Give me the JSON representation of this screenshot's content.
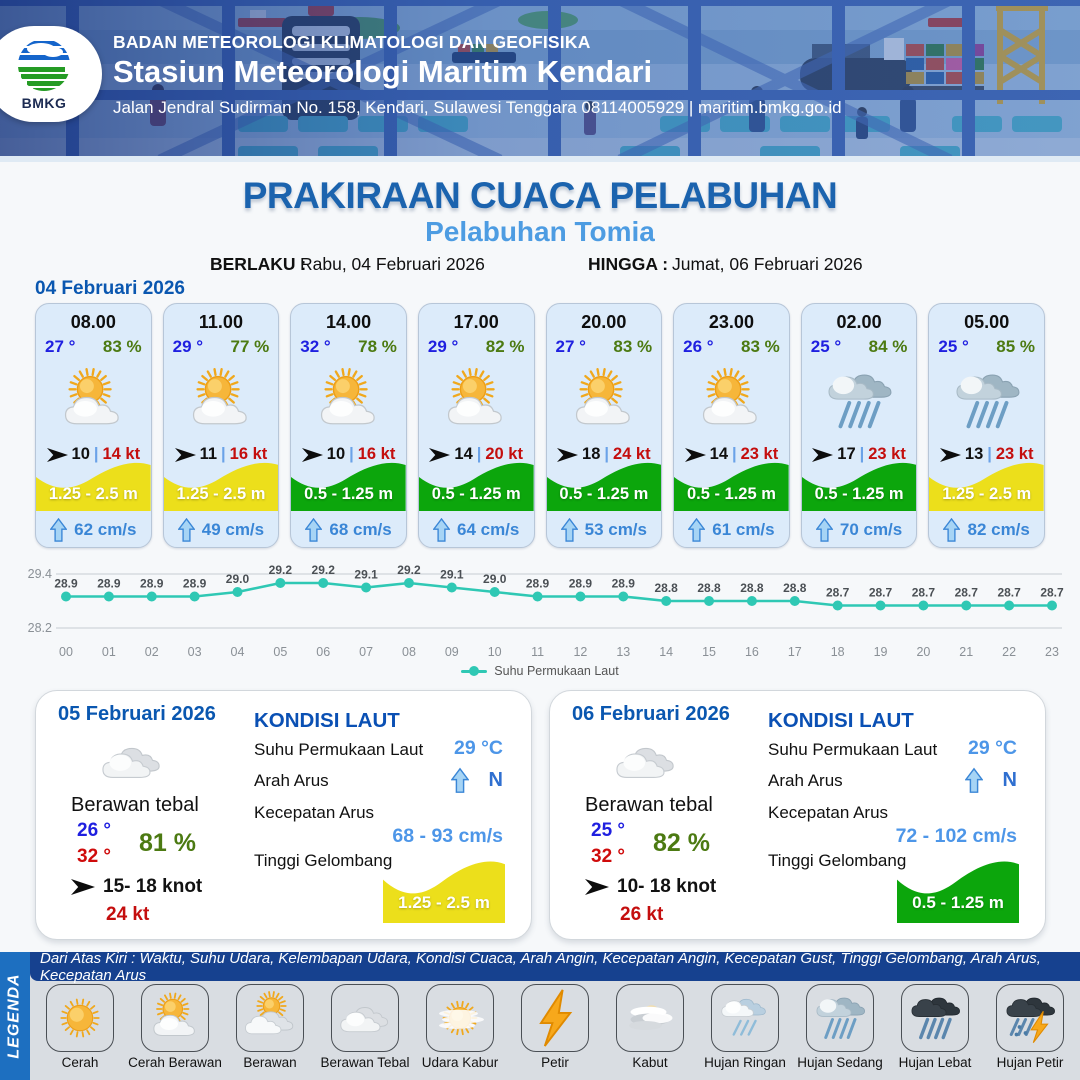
{
  "header": {
    "org": "BADAN METEOROLOGI KLIMATOLOGI DAN GEOFISIKA",
    "station": "Stasiun Meteorologi Maritim Kendari",
    "address": "Jalan Jendral Sudirman No. 158, Kendari, Sulawesi Tenggara  08114005929 | maritim.bmkg.go.id",
    "logo_text": "BMKG"
  },
  "title": {
    "main": "PRAKIRAAN CUACA PELABUHAN",
    "port": "Pelabuhan Tomia",
    "valid_from_label": "BERLAKU :",
    "valid_from": "Rabu, 04 Februari 2026",
    "valid_to_label": "HINGGA :",
    "valid_to": "Jumat, 06 Februari 2026"
  },
  "forecast_date": "04 Februari 2026",
  "hourly": [
    {
      "time": "08.00",
      "temp": "27 °",
      "humidity": "83 %",
      "icon": "cerah-berawan",
      "wind_speed": "10",
      "gust": "14 kt",
      "wave": "1.25 - 2.5 m",
      "wave_color": "#ecdf1b",
      "current": "62 cm/s"
    },
    {
      "time": "11.00",
      "temp": "29 °",
      "humidity": "77 %",
      "icon": "cerah-berawan",
      "wind_speed": "11",
      "gust": "16 kt",
      "wave": "1.25 - 2.5 m",
      "wave_color": "#ecdf1b",
      "current": "49 cm/s"
    },
    {
      "time": "14.00",
      "temp": "32 °",
      "humidity": "78 %",
      "icon": "cerah-berawan",
      "wind_speed": "10",
      "gust": "16 kt",
      "wave": "0.5 - 1.25 m",
      "wave_color": "#0ca60c",
      "current": "68 cm/s"
    },
    {
      "time": "17.00",
      "temp": "29 °",
      "humidity": "82 %",
      "icon": "cerah-berawan",
      "wind_speed": "14",
      "gust": "20 kt",
      "wave": "0.5 - 1.25 m",
      "wave_color": "#0ca60c",
      "current": "64 cm/s"
    },
    {
      "time": "20.00",
      "temp": "27 °",
      "humidity": "83 %",
      "icon": "cerah-berawan",
      "wind_speed": "18",
      "gust": "24 kt",
      "wave": "0.5 - 1.25 m",
      "wave_color": "#0ca60c",
      "current": "53 cm/s"
    },
    {
      "time": "23.00",
      "temp": "26 °",
      "humidity": "83 %",
      "icon": "cerah-berawan",
      "wind_speed": "14",
      "gust": "23 kt",
      "wave": "0.5 - 1.25 m",
      "wave_color": "#0ca60c",
      "current": "61 cm/s"
    },
    {
      "time": "02.00",
      "temp": "25 °",
      "humidity": "84 %",
      "icon": "hujan-sedang",
      "wind_speed": "17",
      "gust": "23 kt",
      "wave": "0.5 - 1.25 m",
      "wave_color": "#0ca60c",
      "current": "70 cm/s"
    },
    {
      "time": "05.00",
      "temp": "25 °",
      "humidity": "85 %",
      "icon": "hujan-sedang",
      "wind_speed": "13",
      "gust": "23 kt",
      "wave": "1.25 - 2.5 m",
      "wave_color": "#ecdf1b",
      "current": "82 cm/s"
    }
  ],
  "chart_data": {
    "type": "line",
    "x": [
      "00",
      "01",
      "02",
      "03",
      "04",
      "05",
      "06",
      "07",
      "08",
      "09",
      "10",
      "11",
      "12",
      "13",
      "14",
      "15",
      "16",
      "17",
      "18",
      "19",
      "20",
      "21",
      "22",
      "23"
    ],
    "series": [
      {
        "name": "Suhu Permukaan Laut",
        "values": [
          28.9,
          28.9,
          28.9,
          28.9,
          29.0,
          29.2,
          29.2,
          29.1,
          29.2,
          29.1,
          29.0,
          28.9,
          28.9,
          28.9,
          28.8,
          28.8,
          28.8,
          28.8,
          28.7,
          28.7,
          28.7,
          28.7,
          28.7,
          28.7
        ]
      }
    ],
    "ylim": [
      28.2,
      29.4
    ],
    "yticks": [
      29.4,
      28.2
    ],
    "line_color": "#2fc8b4",
    "grid": true,
    "legend_position": "bottom"
  },
  "daily": [
    {
      "date": "05 Februari 2026",
      "icon": "berawan-tebal",
      "condition": "Berawan tebal",
      "temp_min": "26 °",
      "temp_max": "32 °",
      "humidity": "81 %",
      "wind": "15- 18 knot",
      "gust": "24 kt",
      "sea": {
        "heading": "KONDISI LAUT",
        "sst_label": "Suhu Permukaan Laut",
        "sst": "29 °C",
        "dir_label": "Arah Arus",
        "dir": "N",
        "speed_label": "Kecepatan Arus",
        "speed": "68 - 93 cm/s",
        "wave_label": "Tinggi Gelombang",
        "wave": "1.25 - 2.5 m",
        "wave_color": "#ecdf1b"
      }
    },
    {
      "date": "06 Februari 2026",
      "icon": "berawan-tebal",
      "condition": "Berawan tebal",
      "temp_min": "25 °",
      "temp_max": "32 °",
      "humidity": "82 %",
      "wind": "10- 18 knot",
      "gust": "26 kt",
      "sea": {
        "heading": "KONDISI LAUT",
        "sst_label": "Suhu Permukaan Laut",
        "sst": "29 °C",
        "dir_label": "Arah Arus",
        "dir": "N",
        "speed_label": "Kecepatan Arus",
        "speed": "72 - 102 cm/s",
        "wave_label": "Tinggi Gelombang",
        "wave": "0.5 - 1.25 m",
        "wave_color": "#0ca60c"
      }
    }
  ],
  "legend": {
    "band": "LEGENDA",
    "note": "Dari Atas Kiri : Waktu, Suhu Udara, Kelembapan Udara, Kondisi Cuaca, Arah Angin, Kecepatan Angin, Kecepatan Gust, Tinggi Gelombang, Arah Arus, Kecepatan Arus",
    "items": [
      {
        "label": "Cerah",
        "icon": "cerah"
      },
      {
        "label": "Cerah Berawan",
        "icon": "cerah-berawan"
      },
      {
        "label": "Berawan",
        "icon": "berawan"
      },
      {
        "label": "Berawan Tebal",
        "icon": "berawan-tebal"
      },
      {
        "label": "Udara Kabur",
        "icon": "udara-kabur"
      },
      {
        "label": "Petir",
        "icon": "petir"
      },
      {
        "label": "Kabut",
        "icon": "kabut"
      },
      {
        "label": "Hujan Ringan",
        "icon": "hujan-ringan"
      },
      {
        "label": "Hujan Sedang",
        "icon": "hujan-sedang"
      },
      {
        "label": "Hujan Lebat",
        "icon": "hujan-lebat"
      },
      {
        "label": "Hujan Petir",
        "icon": "hujan-petir"
      }
    ]
  },
  "colors": {
    "title_blue": "#1b63ae",
    "port_blue": "#4d9ce2",
    "date_blue": "#0a57b0",
    "temp_blue": "#1f1fe0",
    "humidity_green": "#4c7a12",
    "gust_red": "#c40e0e",
    "current_blue": "#3a86d6",
    "wave_yellow": "#ecdf1b",
    "wave_green": "#0ca60c",
    "chart_teal": "#2fc8b4"
  }
}
